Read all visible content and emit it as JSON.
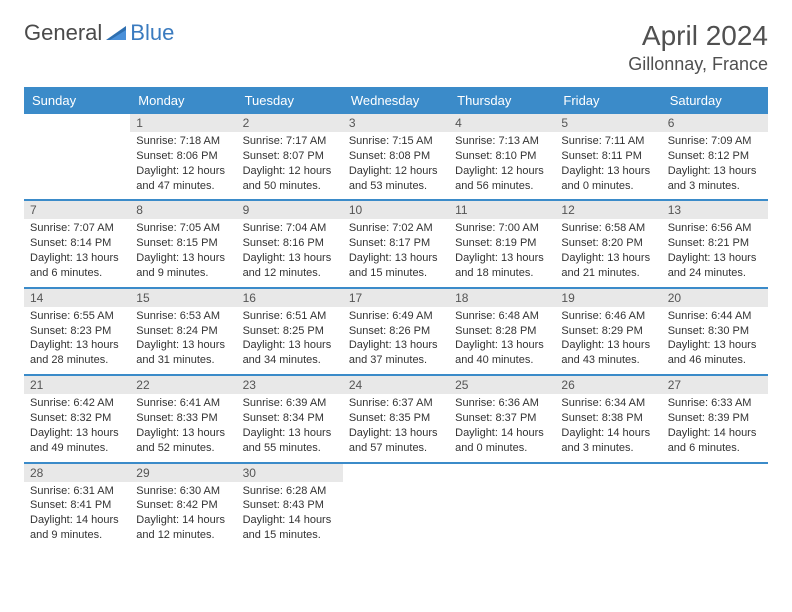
{
  "brand": {
    "part1": "General",
    "part2": "Blue"
  },
  "title": "April 2024",
  "location": "Gillonnay, France",
  "colors": {
    "header_bg": "#3b8bc9",
    "header_text": "#ffffff",
    "daynum_bg": "#e8e8e8",
    "border": "#3b8bc9",
    "brand_grey": "#4a4a4a",
    "brand_blue": "#3b7bbf"
  },
  "daynames": [
    "Sunday",
    "Monday",
    "Tuesday",
    "Wednesday",
    "Thursday",
    "Friday",
    "Saturday"
  ],
  "weeks": [
    [
      {
        "num": "",
        "sunrise": "",
        "sunset": "",
        "daylight": ""
      },
      {
        "num": "1",
        "sunrise": "Sunrise: 7:18 AM",
        "sunset": "Sunset: 8:06 PM",
        "daylight": "Daylight: 12 hours and 47 minutes."
      },
      {
        "num": "2",
        "sunrise": "Sunrise: 7:17 AM",
        "sunset": "Sunset: 8:07 PM",
        "daylight": "Daylight: 12 hours and 50 minutes."
      },
      {
        "num": "3",
        "sunrise": "Sunrise: 7:15 AM",
        "sunset": "Sunset: 8:08 PM",
        "daylight": "Daylight: 12 hours and 53 minutes."
      },
      {
        "num": "4",
        "sunrise": "Sunrise: 7:13 AM",
        "sunset": "Sunset: 8:10 PM",
        "daylight": "Daylight: 12 hours and 56 minutes."
      },
      {
        "num": "5",
        "sunrise": "Sunrise: 7:11 AM",
        "sunset": "Sunset: 8:11 PM",
        "daylight": "Daylight: 13 hours and 0 minutes."
      },
      {
        "num": "6",
        "sunrise": "Sunrise: 7:09 AM",
        "sunset": "Sunset: 8:12 PM",
        "daylight": "Daylight: 13 hours and 3 minutes."
      }
    ],
    [
      {
        "num": "7",
        "sunrise": "Sunrise: 7:07 AM",
        "sunset": "Sunset: 8:14 PM",
        "daylight": "Daylight: 13 hours and 6 minutes."
      },
      {
        "num": "8",
        "sunrise": "Sunrise: 7:05 AM",
        "sunset": "Sunset: 8:15 PM",
        "daylight": "Daylight: 13 hours and 9 minutes."
      },
      {
        "num": "9",
        "sunrise": "Sunrise: 7:04 AM",
        "sunset": "Sunset: 8:16 PM",
        "daylight": "Daylight: 13 hours and 12 minutes."
      },
      {
        "num": "10",
        "sunrise": "Sunrise: 7:02 AM",
        "sunset": "Sunset: 8:17 PM",
        "daylight": "Daylight: 13 hours and 15 minutes."
      },
      {
        "num": "11",
        "sunrise": "Sunrise: 7:00 AM",
        "sunset": "Sunset: 8:19 PM",
        "daylight": "Daylight: 13 hours and 18 minutes."
      },
      {
        "num": "12",
        "sunrise": "Sunrise: 6:58 AM",
        "sunset": "Sunset: 8:20 PM",
        "daylight": "Daylight: 13 hours and 21 minutes."
      },
      {
        "num": "13",
        "sunrise": "Sunrise: 6:56 AM",
        "sunset": "Sunset: 8:21 PM",
        "daylight": "Daylight: 13 hours and 24 minutes."
      }
    ],
    [
      {
        "num": "14",
        "sunrise": "Sunrise: 6:55 AM",
        "sunset": "Sunset: 8:23 PM",
        "daylight": "Daylight: 13 hours and 28 minutes."
      },
      {
        "num": "15",
        "sunrise": "Sunrise: 6:53 AM",
        "sunset": "Sunset: 8:24 PM",
        "daylight": "Daylight: 13 hours and 31 minutes."
      },
      {
        "num": "16",
        "sunrise": "Sunrise: 6:51 AM",
        "sunset": "Sunset: 8:25 PM",
        "daylight": "Daylight: 13 hours and 34 minutes."
      },
      {
        "num": "17",
        "sunrise": "Sunrise: 6:49 AM",
        "sunset": "Sunset: 8:26 PM",
        "daylight": "Daylight: 13 hours and 37 minutes."
      },
      {
        "num": "18",
        "sunrise": "Sunrise: 6:48 AM",
        "sunset": "Sunset: 8:28 PM",
        "daylight": "Daylight: 13 hours and 40 minutes."
      },
      {
        "num": "19",
        "sunrise": "Sunrise: 6:46 AM",
        "sunset": "Sunset: 8:29 PM",
        "daylight": "Daylight: 13 hours and 43 minutes."
      },
      {
        "num": "20",
        "sunrise": "Sunrise: 6:44 AM",
        "sunset": "Sunset: 8:30 PM",
        "daylight": "Daylight: 13 hours and 46 minutes."
      }
    ],
    [
      {
        "num": "21",
        "sunrise": "Sunrise: 6:42 AM",
        "sunset": "Sunset: 8:32 PM",
        "daylight": "Daylight: 13 hours and 49 minutes."
      },
      {
        "num": "22",
        "sunrise": "Sunrise: 6:41 AM",
        "sunset": "Sunset: 8:33 PM",
        "daylight": "Daylight: 13 hours and 52 minutes."
      },
      {
        "num": "23",
        "sunrise": "Sunrise: 6:39 AM",
        "sunset": "Sunset: 8:34 PM",
        "daylight": "Daylight: 13 hours and 55 minutes."
      },
      {
        "num": "24",
        "sunrise": "Sunrise: 6:37 AM",
        "sunset": "Sunset: 8:35 PM",
        "daylight": "Daylight: 13 hours and 57 minutes."
      },
      {
        "num": "25",
        "sunrise": "Sunrise: 6:36 AM",
        "sunset": "Sunset: 8:37 PM",
        "daylight": "Daylight: 14 hours and 0 minutes."
      },
      {
        "num": "26",
        "sunrise": "Sunrise: 6:34 AM",
        "sunset": "Sunset: 8:38 PM",
        "daylight": "Daylight: 14 hours and 3 minutes."
      },
      {
        "num": "27",
        "sunrise": "Sunrise: 6:33 AM",
        "sunset": "Sunset: 8:39 PM",
        "daylight": "Daylight: 14 hours and 6 minutes."
      }
    ],
    [
      {
        "num": "28",
        "sunrise": "Sunrise: 6:31 AM",
        "sunset": "Sunset: 8:41 PM",
        "daylight": "Daylight: 14 hours and 9 minutes."
      },
      {
        "num": "29",
        "sunrise": "Sunrise: 6:30 AM",
        "sunset": "Sunset: 8:42 PM",
        "daylight": "Daylight: 14 hours and 12 minutes."
      },
      {
        "num": "30",
        "sunrise": "Sunrise: 6:28 AM",
        "sunset": "Sunset: 8:43 PM",
        "daylight": "Daylight: 14 hours and 15 minutes."
      },
      {
        "num": "",
        "sunrise": "",
        "sunset": "",
        "daylight": ""
      },
      {
        "num": "",
        "sunrise": "",
        "sunset": "",
        "daylight": ""
      },
      {
        "num": "",
        "sunrise": "",
        "sunset": "",
        "daylight": ""
      },
      {
        "num": "",
        "sunrise": "",
        "sunset": "",
        "daylight": ""
      }
    ]
  ]
}
